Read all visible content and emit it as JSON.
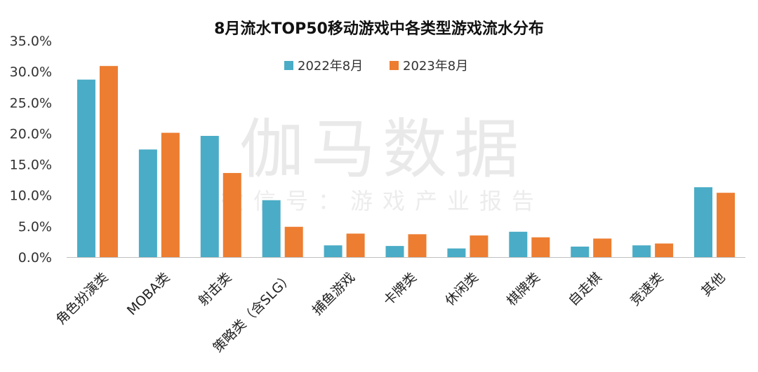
{
  "watermark": {
    "line1": "伽马数据",
    "line2": "微信号：游戏产业报告"
  },
  "colors": {
    "series_2022": "#4aacc6",
    "series_2023": "#ed7d31"
  },
  "chart_data": {
    "type": "bar",
    "title": "8月流水TOP50移动游戏中各类型游戏流水分布",
    "xlabel": "",
    "ylabel": "",
    "ylim": [
      0,
      35
    ],
    "yticks": [
      "0.0%",
      "5.0%",
      "10.0%",
      "15.0%",
      "20.0%",
      "25.0%",
      "30.0%",
      "35.0%"
    ],
    "grid": false,
    "legend_position": "top-center",
    "categories": [
      "角色扮演类",
      "MOBA类",
      "射击类",
      "策略类（含SLG）",
      "捕鱼游戏",
      "卡牌类",
      "休闲类",
      "棋牌类",
      "自走棋",
      "竞速类",
      "其他"
    ],
    "series": [
      {
        "name": "2022年8月",
        "values": [
          28.7,
          17.4,
          19.6,
          9.2,
          1.9,
          1.8,
          1.4,
          4.1,
          1.7,
          1.9,
          11.3
        ]
      },
      {
        "name": "2023年8月",
        "values": [
          30.9,
          20.1,
          13.6,
          4.9,
          3.8,
          3.7,
          3.5,
          3.2,
          3.0,
          2.2,
          10.4
        ]
      }
    ]
  }
}
